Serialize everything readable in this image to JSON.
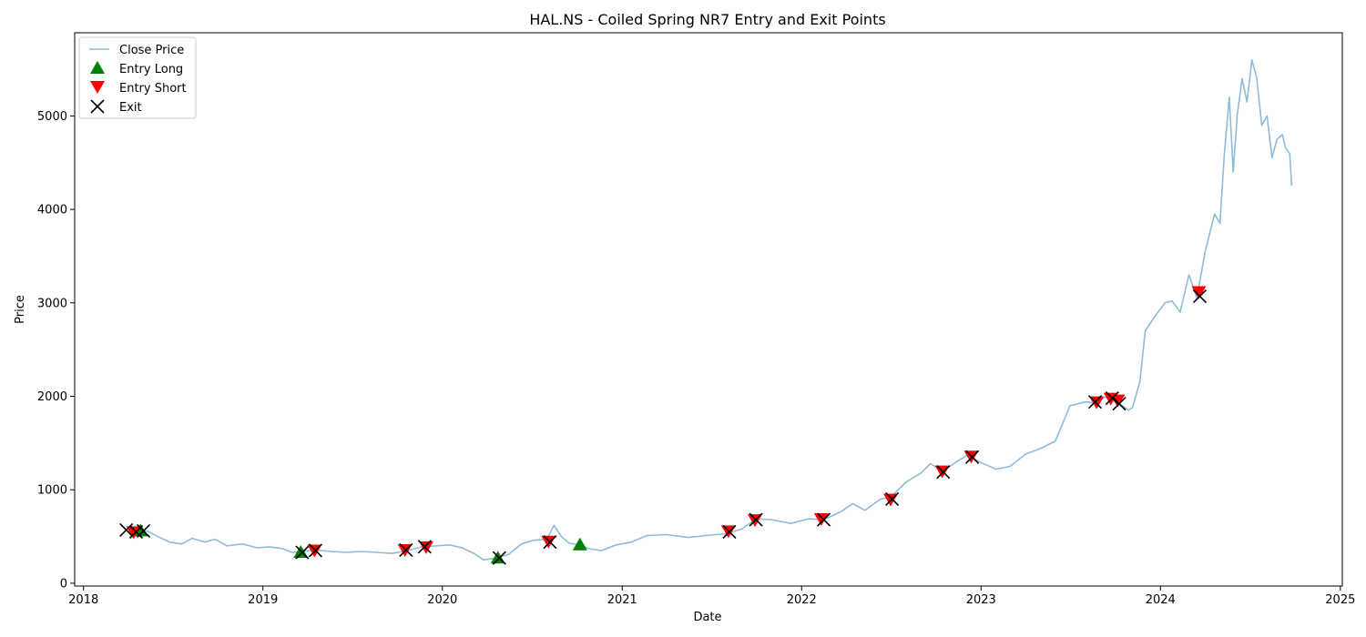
{
  "chart_data": {
    "type": "line",
    "title": "HAL.NS - Coiled Spring NR7 Entry and Exit Points",
    "xlabel": "Date",
    "ylabel": "Price",
    "x_ticks": [
      "2018",
      "2019",
      "2020",
      "2021",
      "2022",
      "2023",
      "2024",
      "2025"
    ],
    "y_ticks": [
      0,
      1000,
      2000,
      3000,
      4000,
      5000
    ],
    "xlim": [
      "2017-12-14",
      "2025-01-05"
    ],
    "ylim": [
      -30,
      5890
    ],
    "grid": false,
    "legend_position": "top-left",
    "colors": {
      "close": "#1f77b4",
      "entry_long": "#008000",
      "entry_short": "#ff0000",
      "exit": "#000000"
    },
    "series": [
      {
        "name": "Close Price",
        "kind": "line",
        "points": [
          [
            "2018-03-29",
            560
          ],
          [
            "2018-04-20",
            550
          ],
          [
            "2018-05-10",
            560
          ],
          [
            "2018-06-01",
            500
          ],
          [
            "2018-06-25",
            440
          ],
          [
            "2018-07-20",
            420
          ],
          [
            "2018-08-10",
            480
          ],
          [
            "2018-09-05",
            440
          ],
          [
            "2018-09-25",
            470
          ],
          [
            "2018-10-20",
            400
          ],
          [
            "2018-11-20",
            420
          ],
          [
            "2018-12-20",
            380
          ],
          [
            "2019-01-15",
            390
          ],
          [
            "2019-02-10",
            370
          ],
          [
            "2019-03-01",
            330
          ],
          [
            "2019-03-20",
            340
          ],
          [
            "2019-04-20",
            355
          ],
          [
            "2019-05-20",
            340
          ],
          [
            "2019-06-20",
            330
          ],
          [
            "2019-07-20",
            340
          ],
          [
            "2019-08-20",
            330
          ],
          [
            "2019-09-20",
            320
          ],
          [
            "2019-10-20",
            345
          ],
          [
            "2019-11-20",
            390
          ],
          [
            "2019-12-20",
            400
          ],
          [
            "2020-01-15",
            410
          ],
          [
            "2020-02-10",
            380
          ],
          [
            "2020-03-05",
            320
          ],
          [
            "2020-03-25",
            250
          ],
          [
            "2020-04-20",
            270
          ],
          [
            "2020-05-15",
            310
          ],
          [
            "2020-06-10",
            420
          ],
          [
            "2020-07-05",
            460
          ],
          [
            "2020-08-01",
            470
          ],
          [
            "2020-08-15",
            620
          ],
          [
            "2020-08-30",
            500
          ],
          [
            "2020-09-15",
            430
          ],
          [
            "2020-10-05",
            410
          ],
          [
            "2020-10-25",
            370
          ],
          [
            "2020-11-20",
            350
          ],
          [
            "2020-12-20",
            410
          ],
          [
            "2021-01-20",
            440
          ],
          [
            "2021-02-20",
            510
          ],
          [
            "2021-04-01",
            520
          ],
          [
            "2021-05-15",
            490
          ],
          [
            "2021-06-20",
            510
          ],
          [
            "2021-08-01",
            530
          ],
          [
            "2021-09-01",
            580
          ],
          [
            "2021-10-01",
            690
          ],
          [
            "2021-11-01",
            680
          ],
          [
            "2021-12-10",
            640
          ],
          [
            "2022-01-15",
            690
          ],
          [
            "2022-02-15",
            680
          ],
          [
            "2022-03-20",
            760
          ],
          [
            "2022-04-15",
            850
          ],
          [
            "2022-05-10",
            780
          ],
          [
            "2022-06-10",
            900
          ],
          [
            "2022-07-01",
            920
          ],
          [
            "2022-08-01",
            1080
          ],
          [
            "2022-09-01",
            1180
          ],
          [
            "2022-09-20",
            1280
          ],
          [
            "2022-10-15",
            1200
          ],
          [
            "2022-11-15",
            1310
          ],
          [
            "2022-12-05",
            1370
          ],
          [
            "2023-01-01",
            1290
          ],
          [
            "2023-02-01",
            1220
          ],
          [
            "2023-03-01",
            1250
          ],
          [
            "2023-04-01",
            1380
          ],
          [
            "2023-05-01",
            1440
          ],
          [
            "2023-06-01",
            1520
          ],
          [
            "2023-07-01",
            1900
          ],
          [
            "2023-08-01",
            1940
          ],
          [
            "2023-08-20",
            1930
          ],
          [
            "2023-09-10",
            1990
          ],
          [
            "2023-09-28",
            1960
          ],
          [
            "2023-10-15",
            1900
          ],
          [
            "2023-10-28",
            1850
          ],
          [
            "2023-11-05",
            1880
          ],
          [
            "2023-11-20",
            2150
          ],
          [
            "2023-12-01",
            2700
          ],
          [
            "2023-12-20",
            2850
          ],
          [
            "2024-01-10",
            3000
          ],
          [
            "2024-01-25",
            3020
          ],
          [
            "2024-02-10",
            2900
          ],
          [
            "2024-02-28",
            3300
          ],
          [
            "2024-03-15",
            3050
          ],
          [
            "2024-04-01",
            3550
          ],
          [
            "2024-04-20",
            3950
          ],
          [
            "2024-05-01",
            3850
          ],
          [
            "2024-05-10",
            4600
          ],
          [
            "2024-05-20",
            5200
          ],
          [
            "2024-05-28",
            4400
          ],
          [
            "2024-06-05",
            5000
          ],
          [
            "2024-06-15",
            5400
          ],
          [
            "2024-06-25",
            5150
          ],
          [
            "2024-07-05",
            5600
          ],
          [
            "2024-07-15",
            5400
          ],
          [
            "2024-07-25",
            4900
          ],
          [
            "2024-08-05",
            5000
          ],
          [
            "2024-08-15",
            4550
          ],
          [
            "2024-08-25",
            4750
          ],
          [
            "2024-09-05",
            4800
          ],
          [
            "2024-09-12",
            4650
          ],
          [
            "2024-09-20",
            4600
          ],
          [
            "2024-09-24",
            4250
          ]
        ]
      },
      {
        "name": "Entry Long",
        "kind": "marker",
        "marker": "triangle-up",
        "points": [
          [
            "2018-04-27",
            560
          ],
          [
            "2019-03-19",
            330
          ],
          [
            "2020-04-23",
            270
          ],
          [
            "2020-10-07",
            410
          ]
        ]
      },
      {
        "name": "Entry Short",
        "kind": "marker",
        "marker": "triangle-down",
        "points": [
          [
            "2018-04-13",
            550
          ],
          [
            "2019-04-16",
            355
          ],
          [
            "2019-10-17",
            360
          ],
          [
            "2019-11-29",
            390
          ],
          [
            "2020-08-04",
            450
          ],
          [
            "2021-08-05",
            560
          ],
          [
            "2021-09-28",
            680
          ],
          [
            "2022-02-10",
            690
          ],
          [
            "2022-07-01",
            900
          ],
          [
            "2022-10-14",
            1200
          ],
          [
            "2022-12-12",
            1360
          ],
          [
            "2023-08-24",
            1940
          ],
          [
            "2023-09-22",
            1980
          ],
          [
            "2023-10-06",
            1960
          ],
          [
            "2024-03-19",
            3120
          ]
        ]
      },
      {
        "name": "Exit",
        "kind": "marker",
        "marker": "x",
        "points": [
          [
            "2018-03-29",
            570
          ],
          [
            "2018-04-18",
            550
          ],
          [
            "2018-05-03",
            560
          ],
          [
            "2019-03-22",
            330
          ],
          [
            "2019-04-18",
            350
          ],
          [
            "2019-10-19",
            355
          ],
          [
            "2019-11-26",
            390
          ],
          [
            "2020-04-26",
            270
          ],
          [
            "2020-08-07",
            440
          ],
          [
            "2021-08-07",
            550
          ],
          [
            "2021-09-30",
            680
          ],
          [
            "2022-02-15",
            680
          ],
          [
            "2022-07-04",
            900
          ],
          [
            "2022-10-16",
            1190
          ],
          [
            "2022-12-14",
            1350
          ],
          [
            "2023-08-21",
            1940
          ],
          [
            "2023-09-25",
            1980
          ],
          [
            "2023-10-09",
            1920
          ],
          [
            "2024-03-21",
            3070
          ]
        ]
      }
    ]
  }
}
